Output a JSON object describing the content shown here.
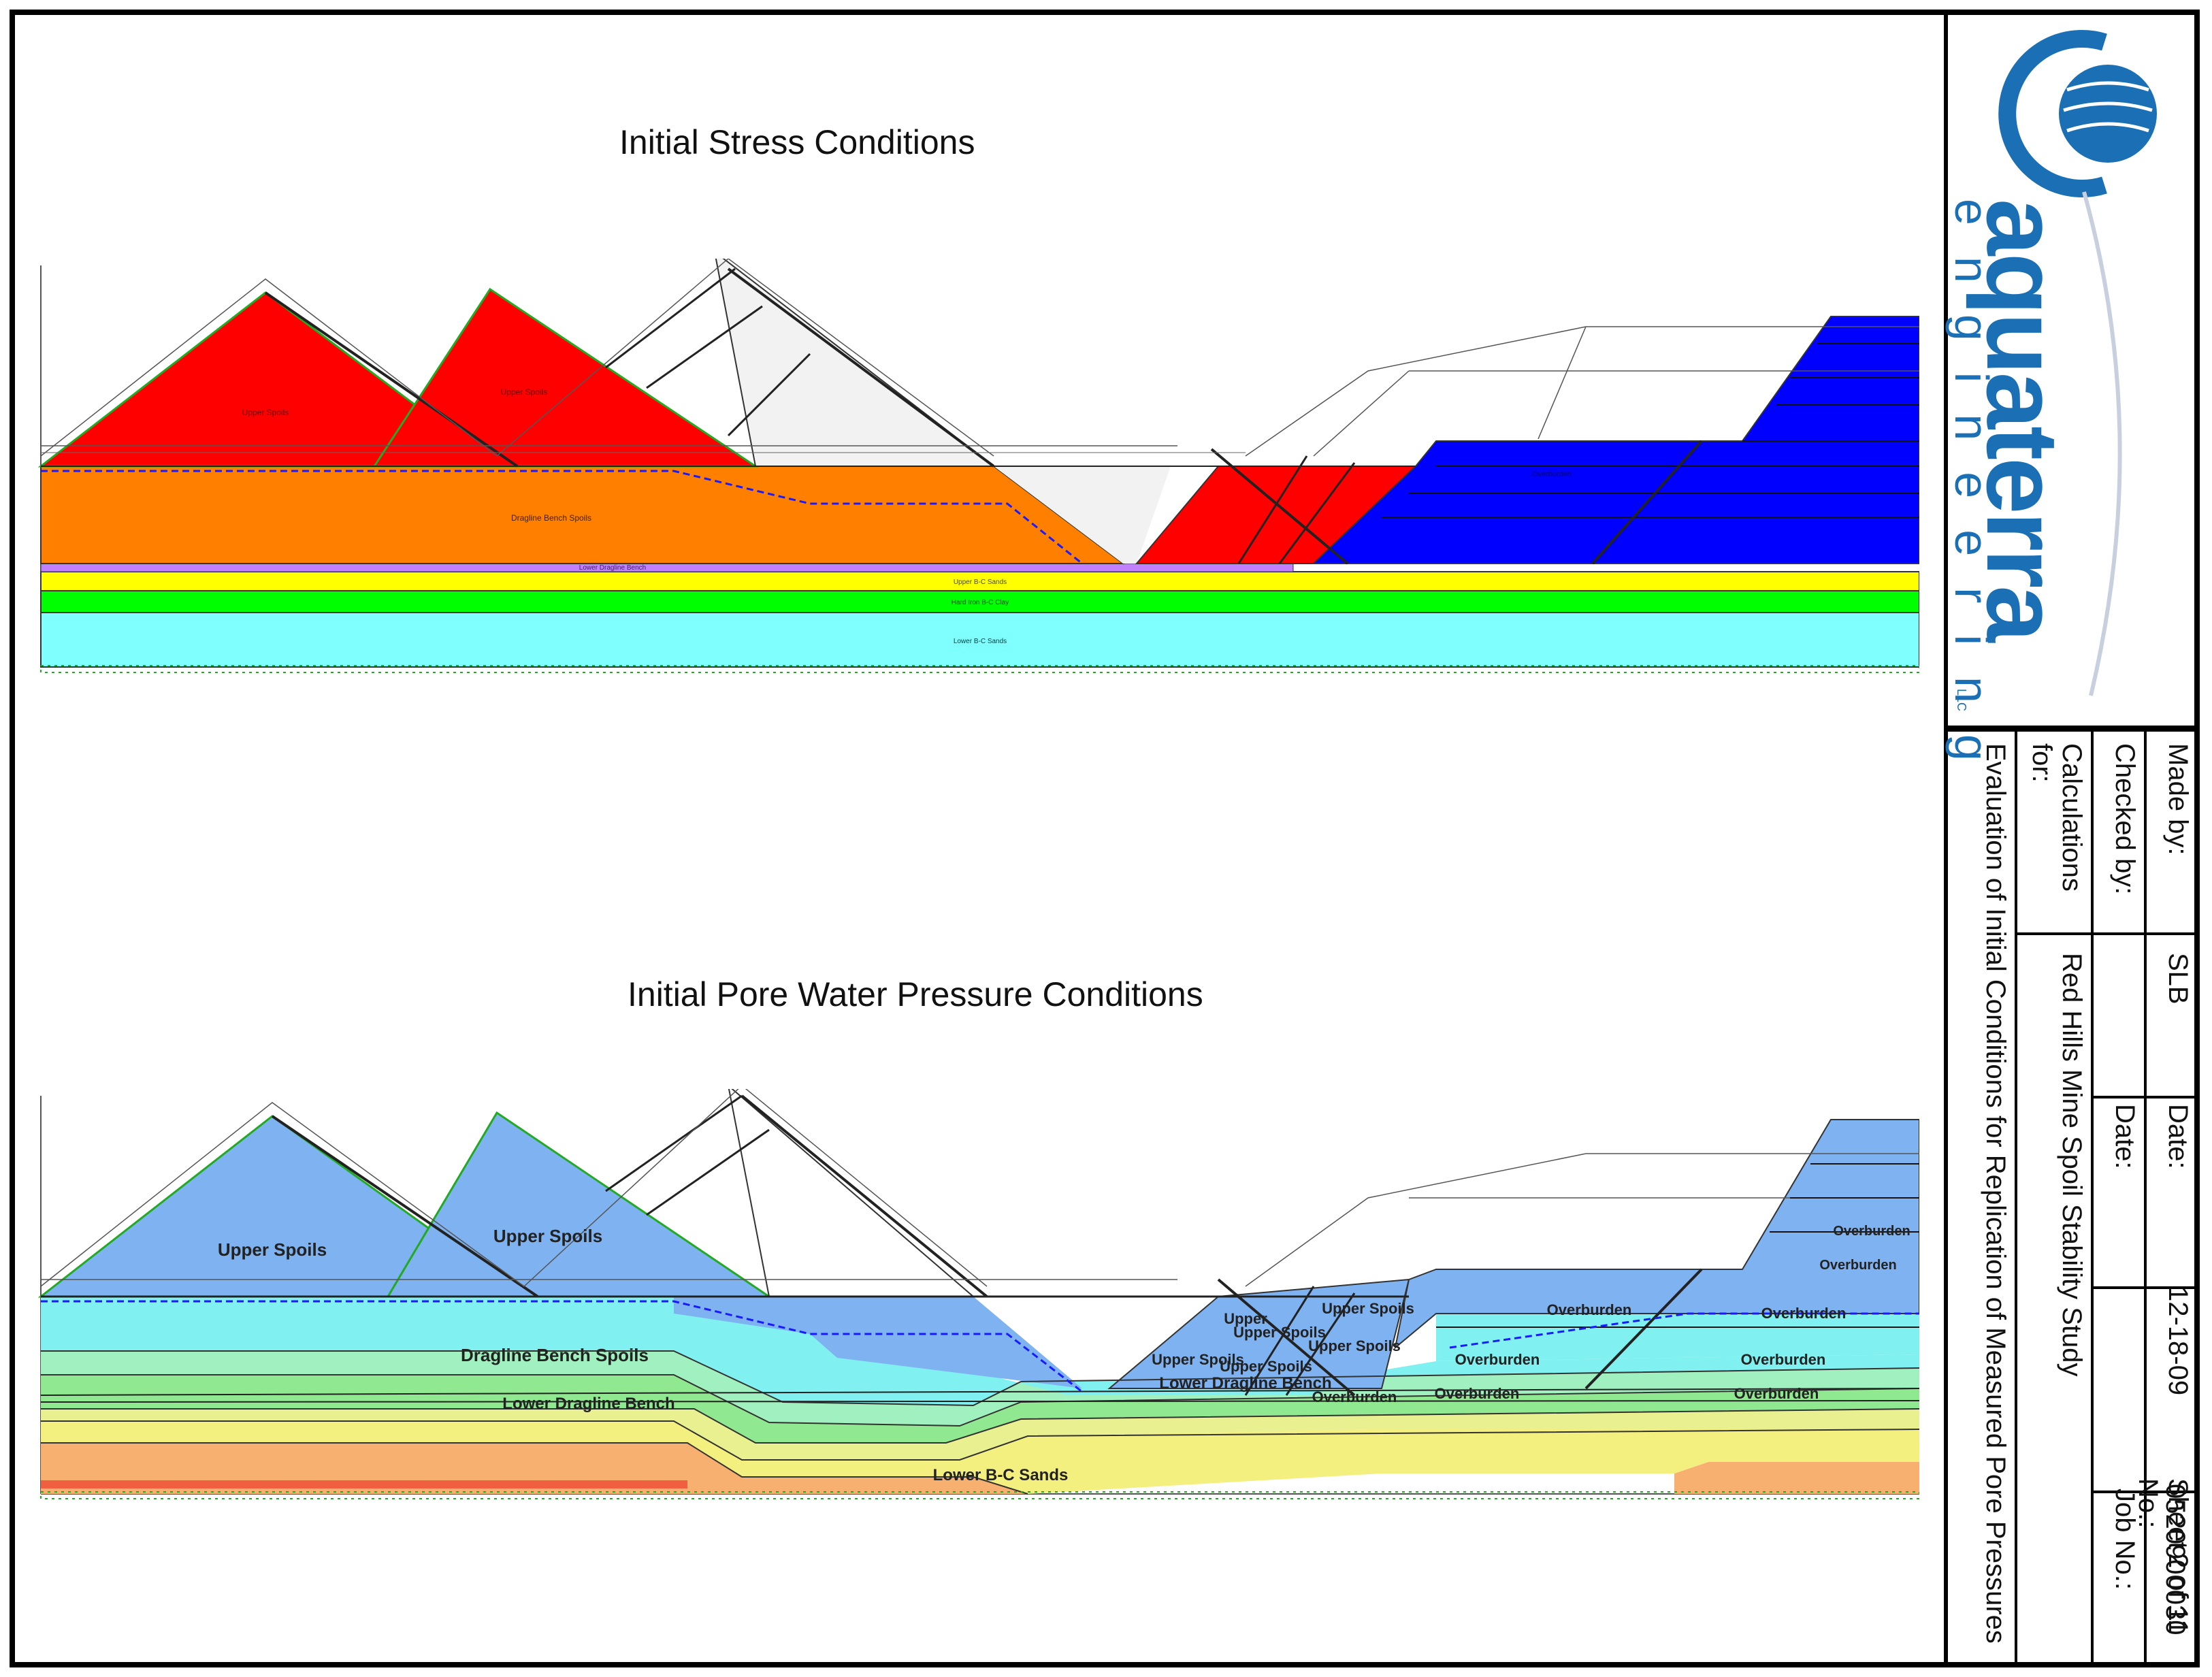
{
  "charts": {
    "top": {
      "title": "Initial Stress Conditions",
      "layers": [
        {
          "name": "Upper Spoils",
          "color": "#ff0000"
        },
        {
          "name": "Upper Spoils",
          "color": "#ff0000"
        },
        {
          "name": "Dragline Bench Spoils",
          "color": "#ff8000"
        },
        {
          "name": "Lower Dragline Bench",
          "color": "#c080ff"
        },
        {
          "name": "Upper B-C Sands",
          "color": "#ffff00"
        },
        {
          "name": "Hard Iron B-C Clay",
          "color": "#00ff00"
        },
        {
          "name": "Lower B-C Sands",
          "color": "#80ffff"
        },
        {
          "name": "Overburden",
          "color": "#0000ff"
        }
      ]
    },
    "bottom": {
      "title": "Initial Pore Water Pressure Conditions",
      "labels": {
        "upper_spoils_1": "Upper Spoils",
        "upper_spoils_2": "Upper Spoils",
        "dragline": "Dragline Bench Spoils",
        "lower_dragline": "Lower Dragline Bench",
        "lower_bc": "Lower B-C Sands",
        "overburden_1": "Overburden",
        "overburden_2": "Overburden",
        "overburden_3": "Overburden",
        "overburden_4": "Overburden",
        "overburden_5": "Overburden",
        "overburden_6": "Overburden",
        "overburden_7": "Overburden",
        "overburden_8": "Overburden",
        "upper_spoils_pit_1": "Upper Spoils",
        "upper_spoils_pit_2": "Upper Spoils",
        "upper_spoils_pit_3": "Upper Spoils",
        "upper_spoils_pit_4": "Upper Spoils",
        "upper_spoils_pit_5": "Upper Spoils",
        "upper_pit": "Upper",
        "overburden_pit": "Overburden"
      },
      "colors": {
        "spoils": "#7fb2f0",
        "cyan": "#80f0f0",
        "green1": "#a0f0c0",
        "green2": "#90e890",
        "yellow1": "#e8f090",
        "yellow2": "#f4f080",
        "orange": "#f8b070",
        "red": "#f06040"
      }
    }
  },
  "logo": {
    "name": "aquaterra",
    "sub": "engineering",
    "llc": "LLC",
    "color": "#1a6fb5"
  },
  "title_block": {
    "made_by_label": "Made by:",
    "made_by_value": "SLB",
    "date_label": "Date:",
    "date_value": "12-18-09",
    "sheet_label": "Sheet No.:",
    "sheet_value": "2 of 11",
    "checked_by_label": "Checked by:",
    "checked_by_value": "",
    "checked_date_label": "Date:",
    "checked_date_value": "",
    "job_label": "Job No.:",
    "job_value": "0520900030",
    "calc_label": "Calculations for:",
    "calc_value": "Red Hills Mine Spoil Stability Study",
    "description": "Evaluation of Initial Conditions for Replication of Measured Pore Pressures"
  }
}
